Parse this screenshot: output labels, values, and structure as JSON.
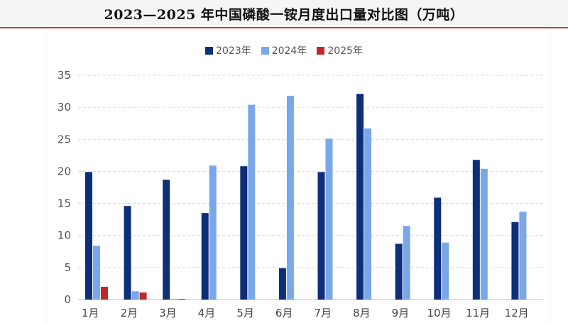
{
  "title": "2023—2025 年中国磷酸一铵月度出口量对比图（万吨）",
  "colors": {
    "2023年": "#0d2f7a",
    "2024年": "#7aa7e8",
    "2025年": "#c0282a"
  },
  "chart_data": {
    "type": "bar",
    "title": "2023—2025 年中国磷酸一铵月度出口量对比图（万吨）",
    "categories": [
      "1月",
      "2月",
      "3月",
      "4月",
      "5月",
      "6月",
      "7月",
      "8月",
      "9月",
      "10月",
      "11月",
      "12月"
    ],
    "series": [
      {
        "name": "2023年",
        "values": [
          19.9,
          14.6,
          18.7,
          13.5,
          20.8,
          4.9,
          19.9,
          32.1,
          8.7,
          15.9,
          21.8,
          12.1
        ]
      },
      {
        "name": "2024年",
        "values": [
          8.4,
          1.3,
          0.1,
          20.9,
          30.4,
          31.8,
          25.1,
          26.7,
          11.5,
          8.9,
          20.4,
          13.7
        ]
      },
      {
        "name": "2025年",
        "values": [
          2.0,
          1.1,
          0.1,
          null,
          null,
          null,
          null,
          null,
          null,
          null,
          null,
          null
        ]
      }
    ],
    "yticks": [
      0,
      5,
      10,
      15,
      20,
      25,
      30,
      35
    ],
    "ylim": [
      0,
      35
    ],
    "grid": true,
    "legend_position": "top"
  }
}
